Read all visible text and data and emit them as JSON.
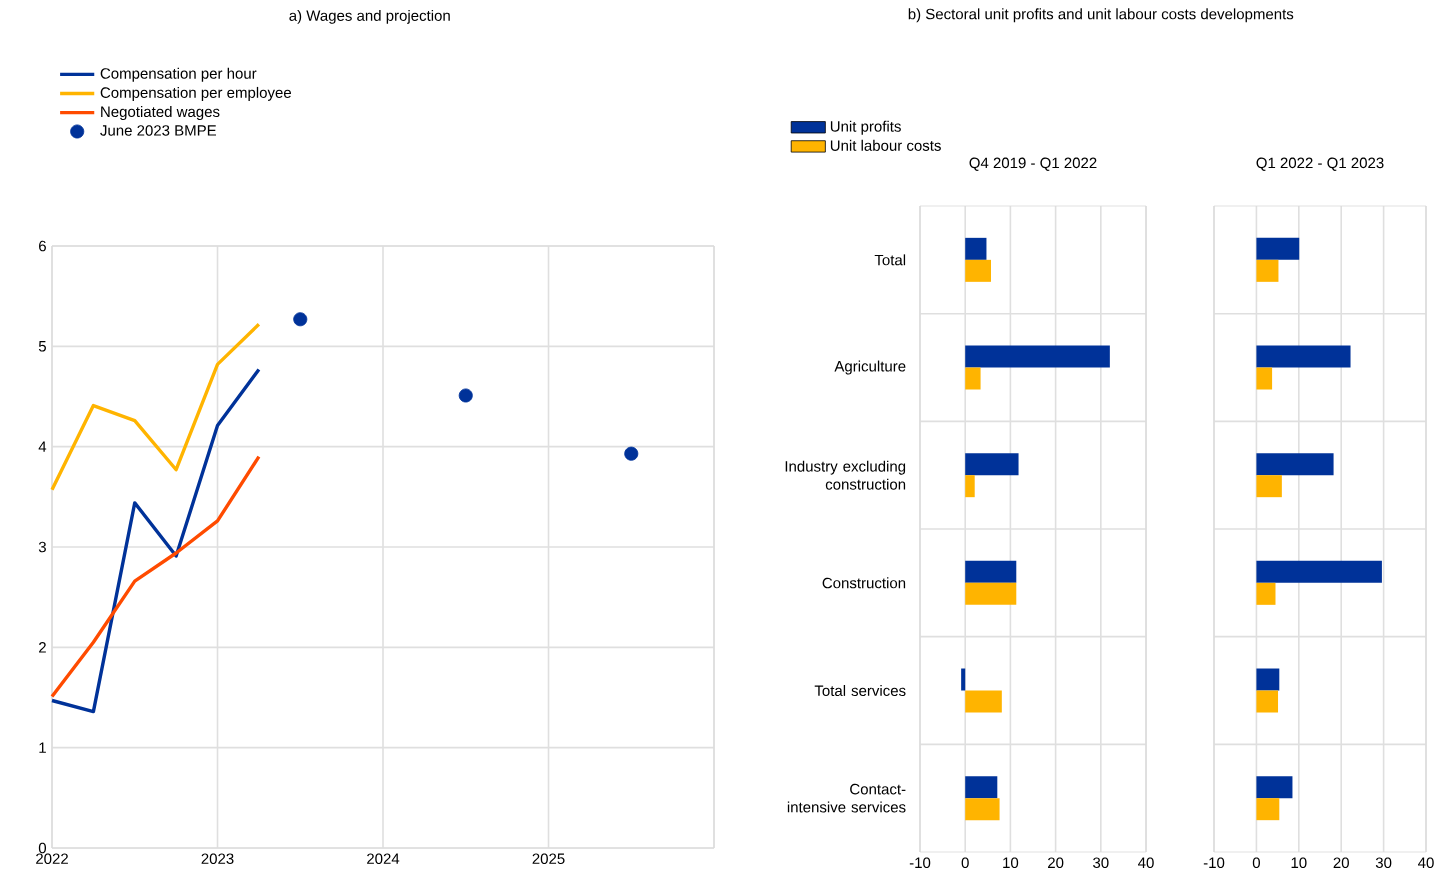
{
  "chart_data": [
    {
      "type": "line",
      "title": "a) Wages and projection",
      "xlim": [
        2022,
        2026
      ],
      "xticks": [
        2022,
        2023,
        2024,
        2025,
        {
          "value": 2026,
          "label": null
        }
      ],
      "ylim": [
        0,
        6
      ],
      "yticks": [
        0,
        1,
        2,
        3,
        4,
        5,
        6
      ],
      "grid": true,
      "legend": "top left",
      "series": [
        {
          "name": "Compensation per hour",
          "color": "#003299",
          "x": [
            2022,
            2022.25,
            2022.5,
            2022.75,
            2023,
            2023.25
          ],
          "values": [
            1.47,
            1.36,
            3.44,
            2.91,
            4.21,
            4.77
          ]
        },
        {
          "name": "Compensation per employee",
          "color": "#ffb400",
          "x": [
            2022,
            2022.25,
            2022.5,
            2022.75,
            2023,
            2023.25
          ],
          "values": [
            3.57,
            4.41,
            4.26,
            3.77,
            4.82,
            5.22
          ]
        },
        {
          "name": "Negotiated wages",
          "color": "#ff4b00",
          "x": [
            2022,
            2022.25,
            2022.5,
            2022.75,
            2023,
            2023.25
          ],
          "values": [
            1.51,
            2.05,
            2.66,
            2.94,
            3.26,
            3.9
          ]
        },
        {
          "name": "June 2023 BMPE",
          "color": "#003299",
          "type": "scatter",
          "x": [
            2023.5,
            2024.5,
            2025.5
          ],
          "values": [
            5.27,
            4.51,
            3.93
          ]
        }
      ]
    },
    {
      "type": "bar",
      "orientation": "horizontal",
      "title": "b) Sectoral unit profits and unit labour costs developments",
      "subtitle": "Q4 2019 - Q1 2022",
      "categories": [
        "Total",
        "Agriculture",
        "Industry excluding construction",
        "Construction",
        "Total services",
        "Contact-intensive services"
      ],
      "xlim": [
        -10,
        40
      ],
      "xticks": [
        -10,
        0,
        10,
        20,
        30,
        40
      ],
      "grid": true,
      "legend": "top left",
      "series": [
        {
          "name": "Unit profits",
          "color": "#003299",
          "values": [
            4.7,
            32,
            11.8,
            11.3,
            -0.9,
            7.1
          ]
        },
        {
          "name": "Unit labour costs",
          "color": "#ffb400",
          "values": [
            5.7,
            3.4,
            2.1,
            11.3,
            8.1,
            7.6
          ]
        }
      ]
    },
    {
      "type": "bar",
      "orientation": "horizontal",
      "title": "Q1 2022 - Q1 2023",
      "categories": [
        null,
        null,
        null,
        null,
        null,
        null
      ],
      "xlim": [
        -10,
        40
      ],
      "xticks": [
        -10,
        0,
        10,
        20,
        30,
        40
      ],
      "grid": true,
      "series": [
        {
          "color": "#003299",
          "values": [
            10.1,
            22.2,
            18.2,
            29.6,
            5.4,
            8.5
          ]
        },
        {
          "color": "#ffb400",
          "values": [
            5.2,
            3.7,
            6.0,
            4.5,
            5.1,
            5.4
          ]
        }
      ]
    }
  ]
}
